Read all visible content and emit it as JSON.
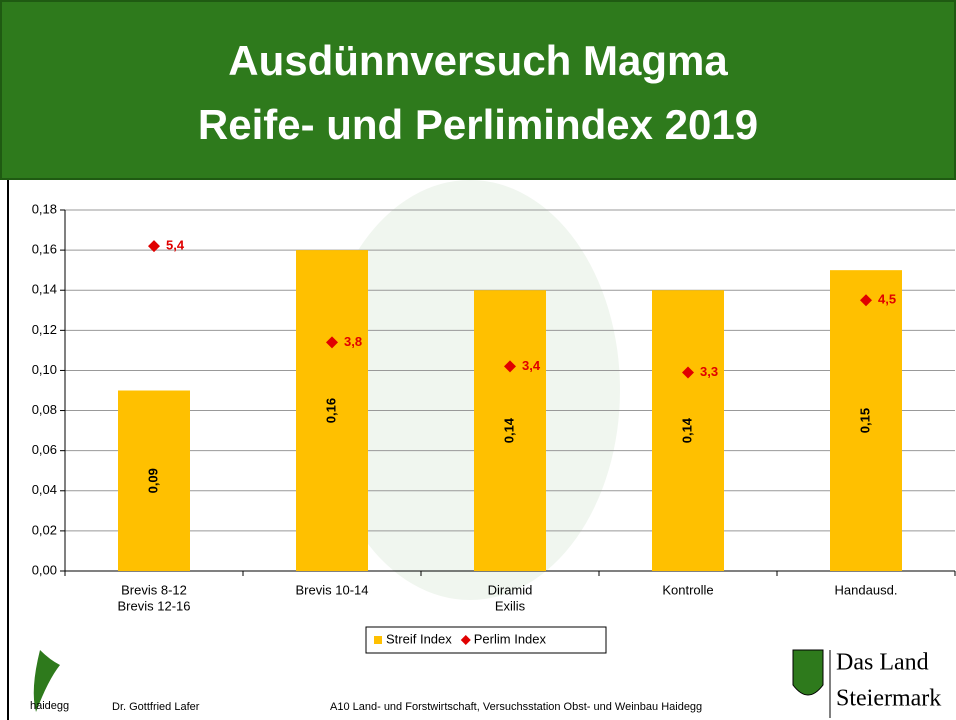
{
  "chart_data": {
    "type": "bar",
    "title": [
      "Ausdünnversuch Magma",
      "Reife- und Perlimindex 2019"
    ],
    "categories": [
      [
        "Brevis 8-12",
        "Brevis 12-16"
      ],
      [
        "Brevis 10-14"
      ],
      [
        "Diramid",
        "Exilis"
      ],
      [
        "Kontrolle"
      ],
      [
        "Handausd."
      ]
    ],
    "series": [
      {
        "name": "Streif Index",
        "type": "bar",
        "color": "#ffc000",
        "values": [
          0.09,
          0.16,
          0.14,
          0.14,
          0.15
        ],
        "value_labels": [
          "0,09",
          "0,16",
          "0,14",
          "0,14",
          "0,15"
        ]
      },
      {
        "name": "Perlim Index",
        "type": "scatter",
        "axis": "y2",
        "color": "#e00000",
        "values": [
          5.4,
          3.8,
          3.4,
          3.3,
          4.5
        ],
        "value_labels": [
          "5,4",
          "3,8",
          "3,4",
          "3,3",
          "4,5"
        ]
      }
    ],
    "ylim": [
      0,
      0.18
    ],
    "yticks": [
      {
        "value": 0,
        "label": "0,00"
      },
      {
        "value": 0.02,
        "label": "0,02"
      },
      {
        "value": 0.04,
        "label": "0,04"
      },
      {
        "value": 0.06,
        "label": "0,06"
      },
      {
        "value": 0.08,
        "label": "0,08"
      },
      {
        "value": 0.1,
        "label": "0,10"
      },
      {
        "value": 0.12,
        "label": "0,12"
      },
      {
        "value": 0.14,
        "label": "0,14"
      },
      {
        "value": 0.16,
        "label": "0,16"
      },
      {
        "value": 0.18,
        "label": "0,18"
      }
    ],
    "y2lim": [
      0,
      6
    ],
    "grid": true,
    "legend": "bottom"
  },
  "footer": {
    "logo_text": "haidegg",
    "author": "Dr. Gottfried Lafer",
    "institution": "A10 Land- und Forstwirtschaft, Versuchsstation Obst- und Weinbau Haidegg",
    "brand": [
      "Das Land",
      "Steiermark"
    ]
  }
}
